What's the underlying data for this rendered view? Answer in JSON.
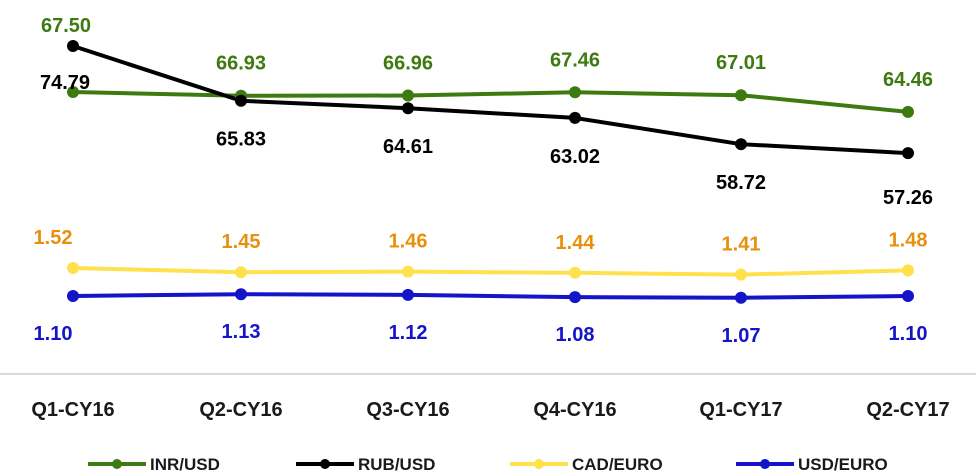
{
  "chart_data": {
    "type": "line",
    "categories": [
      "Q1-CY16",
      "Q2-CY16",
      "Q3-CY16",
      "Q4-CY16",
      "Q1-CY17",
      "Q2-CY17"
    ],
    "series": [
      {
        "name": "INR/USD",
        "values": [
          67.5,
          66.93,
          66.96,
          67.46,
          67.01,
          64.46
        ],
        "color": "#3d7a0f",
        "value_labels": [
          "67.50",
          "66.93",
          "66.96",
          "67.46",
          "67.01",
          "64.46"
        ]
      },
      {
        "name": "RUB/USD",
        "values": [
          74.79,
          65.83,
          64.61,
          63.02,
          58.72,
          57.26
        ],
        "color": "#000000",
        "value_labels": [
          "74.79",
          "65.83",
          "64.61",
          "63.02",
          "58.72",
          "57.26"
        ]
      },
      {
        "name": "CAD/EURO",
        "values": [
          1.52,
          1.45,
          1.46,
          1.44,
          1.41,
          1.48
        ],
        "color": "#ffe14d",
        "label_color": "#e8900c",
        "value_labels": [
          "1.52",
          "1.45",
          "1.46",
          "1.44",
          "1.41",
          "1.48"
        ]
      },
      {
        "name": "USD/EURO",
        "values": [
          1.1,
          1.13,
          1.12,
          1.08,
          1.07,
          1.1
        ],
        "color": "#1414c8",
        "value_labels": [
          "1.10",
          "1.13",
          "1.12",
          "1.08",
          "1.07",
          "1.10"
        ]
      }
    ],
    "legend_position": "bottom",
    "grid": false
  }
}
